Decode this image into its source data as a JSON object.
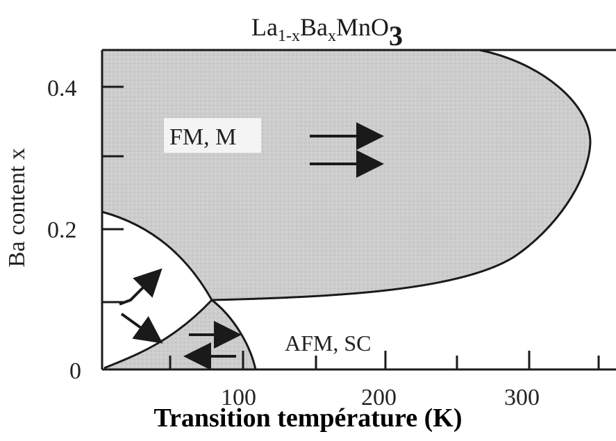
{
  "title": {
    "main": "La",
    "sub1": "1-x",
    "mid": "Ba",
    "sub2": "x",
    "end": "MnO",
    "sub3": "3"
  },
  "xlabel": "Transition température (K)",
  "ylabel": "Ba content x",
  "x_ticks": [
    "100",
    "200",
    "300"
  ],
  "y_ticks": [
    "0",
    "0.2",
    "0.4"
  ],
  "regions": {
    "fm": "FM, M",
    "afm": "AFM, SC"
  },
  "colors": {
    "fm_fill": "#cfcfcf",
    "afm_fill": "#d6d6d6",
    "line": "#1a1a1a"
  }
}
